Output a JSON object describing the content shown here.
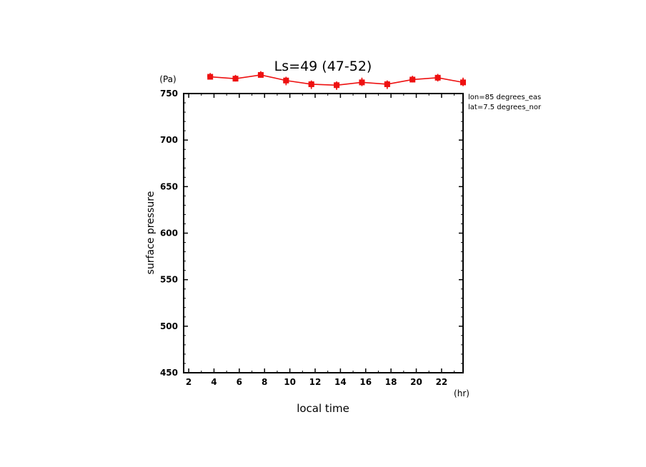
{
  "chart_data": {
    "type": "line",
    "title": "Ls=49 (47-52)",
    "xlabel": "local time",
    "x_unit": "(hr)",
    "ylabel": "surface pressure",
    "y_unit": "(Pa)",
    "annotations": [
      "lon=85 degrees_eas",
      "lat=7.5 degrees_nor"
    ],
    "xlim": [
      1.6,
      23.7
    ],
    "ylim": [
      450,
      750
    ],
    "x_ticks": [
      2,
      4,
      6,
      8,
      10,
      12,
      14,
      16,
      18,
      20,
      22
    ],
    "y_ticks": [
      450,
      500,
      550,
      600,
      650,
      700,
      750
    ],
    "grid": false,
    "series_color": "#ee1111",
    "series": [
      {
        "x": [
          3.7,
          5.7,
          7.7,
          9.7,
          11.7,
          13.7,
          15.7,
          17.7,
          19.7,
          21.7,
          23.7
        ],
        "values": [
          768,
          766,
          770,
          764,
          760,
          759,
          762,
          760,
          765,
          767,
          762
        ],
        "scatter_values": [
          [
            769,
            768
          ],
          [
            767,
            766
          ],
          [
            771,
            770
          ],
          [
            765,
            762,
            763
          ],
          [
            761,
            759,
            758,
            760
          ],
          [
            760,
            758,
            757
          ],
          [
            764,
            763,
            761,
            762
          ],
          [
            761,
            759,
            758
          ],
          [
            766,
            765
          ],
          [
            768,
            766
          ],
          [
            764,
            763,
            761,
            762
          ]
        ]
      }
    ]
  }
}
